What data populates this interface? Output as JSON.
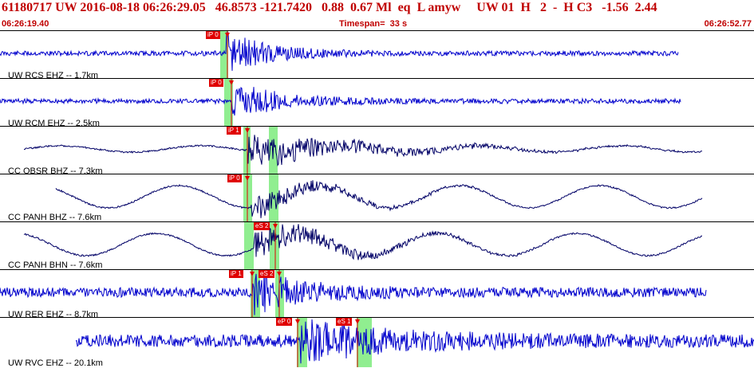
{
  "header": {
    "title": "61180717 UW 2016-08-18 06:26:29.05   46.8573 -121.7420   0.88  0.67 Ml  eq  L amyw     UW 01  H   2  -  H C3   -1.56  2.44",
    "start_time": "06:26:19.40",
    "timespan": "Timespan=  33 s",
    "end_time": "06:26:52.77"
  },
  "colors": {
    "title": "#c00000",
    "trace_short": "#0000cc",
    "trace_broadband": "#000066",
    "pick_window": "#90ee90",
    "pick": "#e00000"
  },
  "channels": [
    {
      "label": "UW RCS EHZ -- 1.7km",
      "picks": [
        {
          "tag": "iP 0"
        }
      ]
    },
    {
      "label": "UW RCM EHZ -- 2.5km",
      "picks": [
        {
          "tag": "iP 0"
        }
      ]
    },
    {
      "label": "CC OBSR BHZ -- 7.3km",
      "picks": [
        {
          "tag": "iP 1"
        }
      ]
    },
    {
      "label": "CC PANH BHZ -- 7.6km",
      "picks": [
        {
          "tag": "iP 0"
        }
      ]
    },
    {
      "label": "CC PANH BHN -- 7.6km",
      "picks": [
        {
          "tag": "eS 2"
        }
      ]
    },
    {
      "label": "UW RER EHZ -- 8.7km",
      "picks": [
        {
          "tag": "iP 1"
        },
        {
          "tag": "eS 2"
        }
      ]
    },
    {
      "label": "UW RVC EHZ -- 20.1km",
      "picks": [
        {
          "tag": "eP 0"
        },
        {
          "tag": "eS 1"
        }
      ]
    }
  ]
}
